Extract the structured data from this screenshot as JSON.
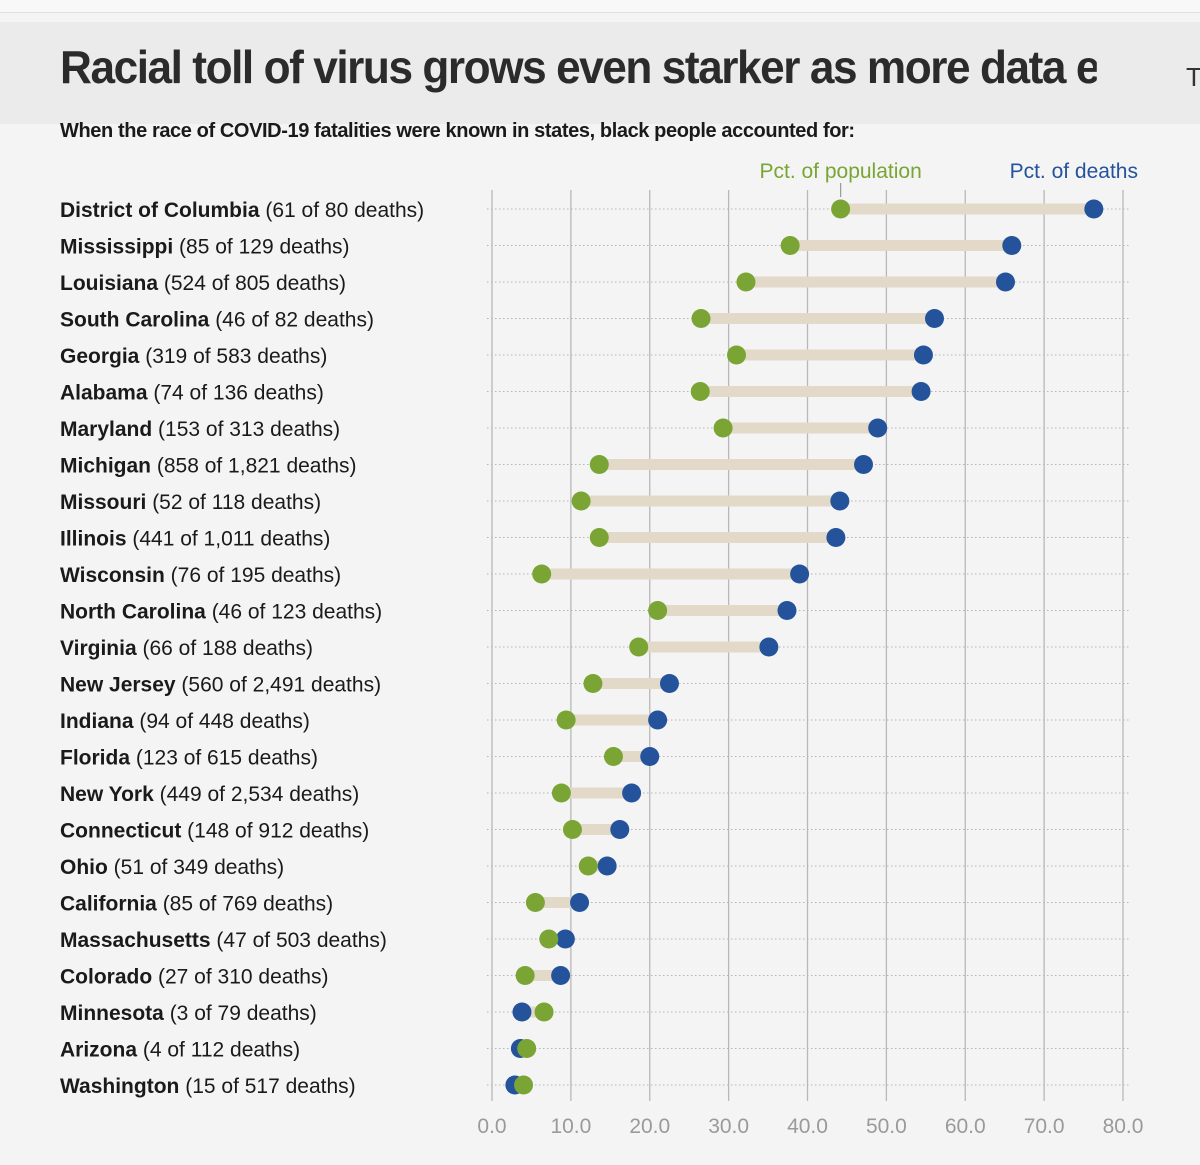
{
  "headline": "Racial toll of virus grows even starker as more data e...",
  "headline_clipped_next": "T",
  "chart_data": {
    "type": "dumbbell",
    "title": "When the race of COVID-19 fatalities were known in states, black people accounted for:",
    "xlim": [
      0,
      80
    ],
    "xticks": [
      "0.0",
      "10.0",
      "20.0",
      "30.0",
      "40.0",
      "50.0",
      "60.0",
      "70.0",
      "80.0"
    ],
    "grid": true,
    "legend": {
      "population": {
        "label": "Pct. of population",
        "color": "#7aa534"
      },
      "deaths": {
        "label": "Pct. of deaths",
        "color": "#24539c"
      }
    },
    "connector_color": "#e3d9c8",
    "rows": [
      {
        "state": "District of Columbia",
        "detail": "(61 of 80 deaths)",
        "population": 44.2,
        "deaths": 76.3
      },
      {
        "state": "Mississippi",
        "detail": "(85 of 129 deaths)",
        "population": 37.8,
        "deaths": 65.9
      },
      {
        "state": "Louisiana",
        "detail": "(524 of 805 deaths)",
        "population": 32.2,
        "deaths": 65.1
      },
      {
        "state": "South Carolina",
        "detail": "(46 of 82 deaths)",
        "population": 26.5,
        "deaths": 56.1
      },
      {
        "state": "Georgia",
        "detail": "(319 of 583 deaths)",
        "population": 31.0,
        "deaths": 54.7
      },
      {
        "state": "Alabama",
        "detail": "(74 of 136 deaths)",
        "population": 26.4,
        "deaths": 54.4
      },
      {
        "state": "Maryland",
        "detail": "(153 of 313 deaths)",
        "population": 29.3,
        "deaths": 48.9
      },
      {
        "state": "Michigan",
        "detail": "(858 of 1,821 deaths)",
        "population": 13.6,
        "deaths": 47.1
      },
      {
        "state": "Missouri",
        "detail": "(52 of 118 deaths)",
        "population": 11.3,
        "deaths": 44.1
      },
      {
        "state": "Illinois",
        "detail": "(441 of 1,011 deaths)",
        "population": 13.6,
        "deaths": 43.6
      },
      {
        "state": "Wisconsin",
        "detail": "(76 of 195 deaths)",
        "population": 6.3,
        "deaths": 39.0
      },
      {
        "state": "North Carolina",
        "detail": "(46 of 123 deaths)",
        "population": 21.0,
        "deaths": 37.4
      },
      {
        "state": "Virginia",
        "detail": "(66 of 188 deaths)",
        "population": 18.6,
        "deaths": 35.1
      },
      {
        "state": "New Jersey",
        "detail": "(560 of 2,491 deaths)",
        "population": 12.8,
        "deaths": 22.5
      },
      {
        "state": "Indiana",
        "detail": "(94 of 448 deaths)",
        "population": 9.4,
        "deaths": 21.0
      },
      {
        "state": "Florida",
        "detail": "(123 of 615 deaths)",
        "population": 15.4,
        "deaths": 20.0
      },
      {
        "state": "New York",
        "detail": "(449 of 2,534 deaths)",
        "population": 8.8,
        "deaths": 17.7
      },
      {
        "state": "Connecticut",
        "detail": "(148 of 912 deaths)",
        "population": 10.2,
        "deaths": 16.2
      },
      {
        "state": "Ohio",
        "detail": "(51 of 349 deaths)",
        "population": 12.2,
        "deaths": 14.6
      },
      {
        "state": "California",
        "detail": "(85 of 769 deaths)",
        "population": 5.5,
        "deaths": 11.1
      },
      {
        "state": "Massachusetts",
        "detail": "(47 of 503 deaths)",
        "population": 7.2,
        "deaths": 9.3
      },
      {
        "state": "Colorado",
        "detail": "(27 of 310 deaths)",
        "population": 4.2,
        "deaths": 8.7
      },
      {
        "state": "Minnesota",
        "detail": "(3 of 79 deaths)",
        "population": 6.6,
        "deaths": 3.8
      },
      {
        "state": "Arizona",
        "detail": "(4 of 112 deaths)",
        "population": 4.4,
        "deaths": 3.6
      },
      {
        "state": "Washington",
        "detail": "(15 of 517 deaths)",
        "population": 4.0,
        "deaths": 2.9
      }
    ]
  }
}
